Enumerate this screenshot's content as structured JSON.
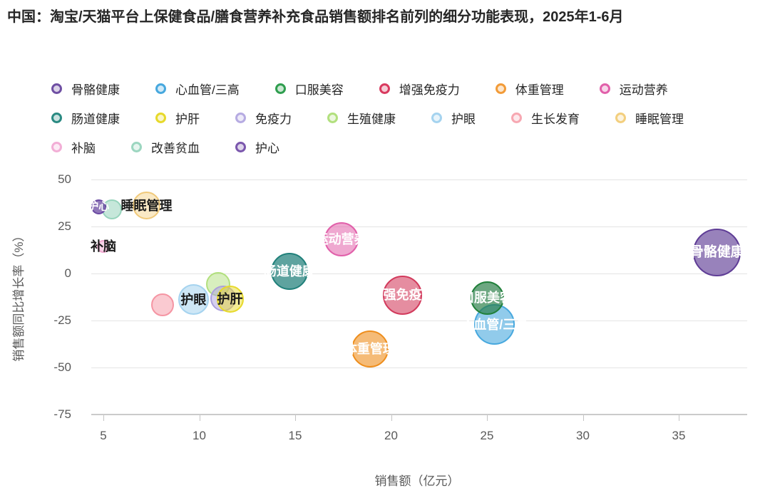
{
  "title": "中国：淘宝/天猫平台上保健食品/膳食营养补充食品销售额排名前列的细分功能表现，2025年1-6月",
  "legend": {
    "rows": [
      [
        {
          "label": "骨骼健康",
          "color": "#6f4fa3"
        },
        {
          "label": "心血管/三高",
          "color": "#47a8de"
        },
        {
          "label": "口服美容",
          "color": "#2f9e4f"
        },
        {
          "label": "增强免疫力",
          "color": "#d93a5f"
        },
        {
          "label": "体重管理",
          "color": "#f29b38"
        },
        {
          "label": "运动营养",
          "color": "#e160aa"
        }
      ],
      [
        {
          "label": "肠道健康",
          "color": "#2a8a82"
        },
        {
          "label": "护肝",
          "color": "#e7d92b"
        },
        {
          "label": "免疫力",
          "color": "#b6abe2"
        },
        {
          "label": "生殖健康",
          "color": "#b2e07e"
        },
        {
          "label": "护眼",
          "color": "#a5d3ef"
        },
        {
          "label": "生长发育",
          "color": "#f7a8b2"
        },
        {
          "label": "睡眠管理",
          "color": "#f3cf7e"
        }
      ],
      [
        {
          "label": "补脑",
          "color": "#f2aed6"
        },
        {
          "label": "改善贫血",
          "color": "#9cd6c0"
        },
        {
          "label": "护心",
          "color": "#7b57ad"
        }
      ]
    ]
  },
  "chart_data": {
    "type": "scatter",
    "title": "中国：淘宝/天猫平台上保健食品/膳食营养补充食品销售额排名前列的细分功能表现，2025年1-6月",
    "x_axis": {
      "title": "销售额（亿元）",
      "ticks": [
        5,
        10,
        15,
        20,
        25,
        30,
        35
      ],
      "range": [
        4.4,
        38.6
      ]
    },
    "y_axis": {
      "title": "销售额同比增长率（%）",
      "ticks": [
        50,
        25,
        0,
        -25,
        -50,
        -75
      ],
      "range": [
        -75,
        55
      ],
      "gridlines": [
        50,
        25,
        0,
        -25,
        -50
      ]
    },
    "legend_position": "top",
    "grid": "horizontal-only",
    "points": [
      {
        "name": "改善贫血",
        "x": 5.45,
        "y": 34.0,
        "r": 14,
        "stroke": "#97d4bc",
        "fill": "rgba(151,212,188,0.55)",
        "label": {
          "show": false
        }
      },
      {
        "name": "睡眠管理",
        "x": 7.25,
        "y": 36.0,
        "r": 19.5,
        "stroke": "#f0c97a",
        "fill": "rgba(243,207,126,0.45)",
        "label": {
          "show": true,
          "color": "#1a1a1a",
          "size": 18
        }
      },
      {
        "name": "护心",
        "x": 4.75,
        "y": 35.5,
        "r": 10.5,
        "stroke": "#6a49a2",
        "fill": "rgba(106,73,162,0.75)",
        "label": {
          "show": true,
          "color": "#ffffff",
          "size": 15
        }
      },
      {
        "name": "补脑",
        "x": 5.0,
        "y": 14.3,
        "r": 9,
        "stroke": "#f0a6cf",
        "fill": "rgba(240,166,207,0.5)",
        "label": {
          "show": true,
          "color": "#1a1a1a",
          "size": 18
        }
      },
      {
        "name": "生长发育",
        "x": 8.1,
        "y": -16.8,
        "r": 16,
        "stroke": "#f595a3",
        "fill": "rgba(245,149,163,0.5)",
        "label": {
          "show": false
        }
      },
      {
        "name": "生殖健康",
        "x": 11.0,
        "y": -5.8,
        "r": 17,
        "stroke": "#b2e07e",
        "fill": "rgba(178,224,126,0.5)",
        "label": {
          "show": false
        }
      },
      {
        "name": "免疫力",
        "x": 11.25,
        "y": -13.3,
        "r": 18,
        "stroke": "#ab9fdd",
        "fill": "rgba(171,159,221,0.5)",
        "label": {
          "show": false
        }
      },
      {
        "name": "护眼",
        "x": 9.7,
        "y": -13.9,
        "r": 21.5,
        "stroke": "#a5d3ef",
        "fill": "rgba(165,211,239,0.55)",
        "label": {
          "show": true,
          "color": "#1a1a1a",
          "size": 18
        }
      },
      {
        "name": "护肝",
        "x": 11.6,
        "y": -13.5,
        "r": 19,
        "stroke": "#e7d92b",
        "fill": "rgba(231,217,43,0.5)",
        "label": {
          "show": true,
          "color": "#1a1a1a",
          "size": 18
        }
      },
      {
        "name": "肠道健康",
        "x": 14.7,
        "y": 1.1,
        "r": 26,
        "stroke": "#20807a",
        "fill": "rgba(32,128,122,0.72)",
        "label": {
          "show": true,
          "color": "#ffffff",
          "size": 18
        }
      },
      {
        "name": "运动营养",
        "x": 17.4,
        "y": 18.2,
        "r": 24,
        "stroke": "#e160aa",
        "fill": "rgba(225,96,170,0.55)",
        "label": {
          "show": true,
          "color": "#ffffff",
          "size": 18
        }
      },
      {
        "name": "体重管理",
        "x": 18.9,
        "y": -40.0,
        "r": 26,
        "stroke": "#ee8e1d",
        "fill": "rgba(238,142,29,0.6)",
        "label": {
          "show": true,
          "color": "#ffffff",
          "size": 18
        }
      },
      {
        "name": "增强免疫力",
        "x": 20.6,
        "y": -11.5,
        "r": 27.5,
        "stroke": "#d23a5c",
        "fill": "rgba(210,58,92,0.58)",
        "label": {
          "show": true,
          "color": "#ffffff",
          "size": 18
        }
      },
      {
        "name": "心血管/三高",
        "x": 25.4,
        "y": -27.2,
        "r": 28.5,
        "stroke": "#47a8de",
        "fill": "rgba(71,168,222,0.6)",
        "label": {
          "show": true,
          "color": "#ffffff",
          "size": 18
        }
      },
      {
        "name": "口服美容",
        "x": 25.0,
        "y": -13.0,
        "r": 23.5,
        "stroke": "#20803a",
        "fill": "rgba(38,125,70,0.68)",
        "label": {
          "show": true,
          "color": "#ffffff",
          "size": 18
        }
      },
      {
        "name": "骨骼健康",
        "x": 37.0,
        "y": 11.2,
        "r": 33.5,
        "stroke": "#5f3d96",
        "fill": "rgba(123,95,168,0.78)",
        "label": {
          "show": true,
          "color": "#ffffff",
          "size": 19
        }
      }
    ]
  }
}
